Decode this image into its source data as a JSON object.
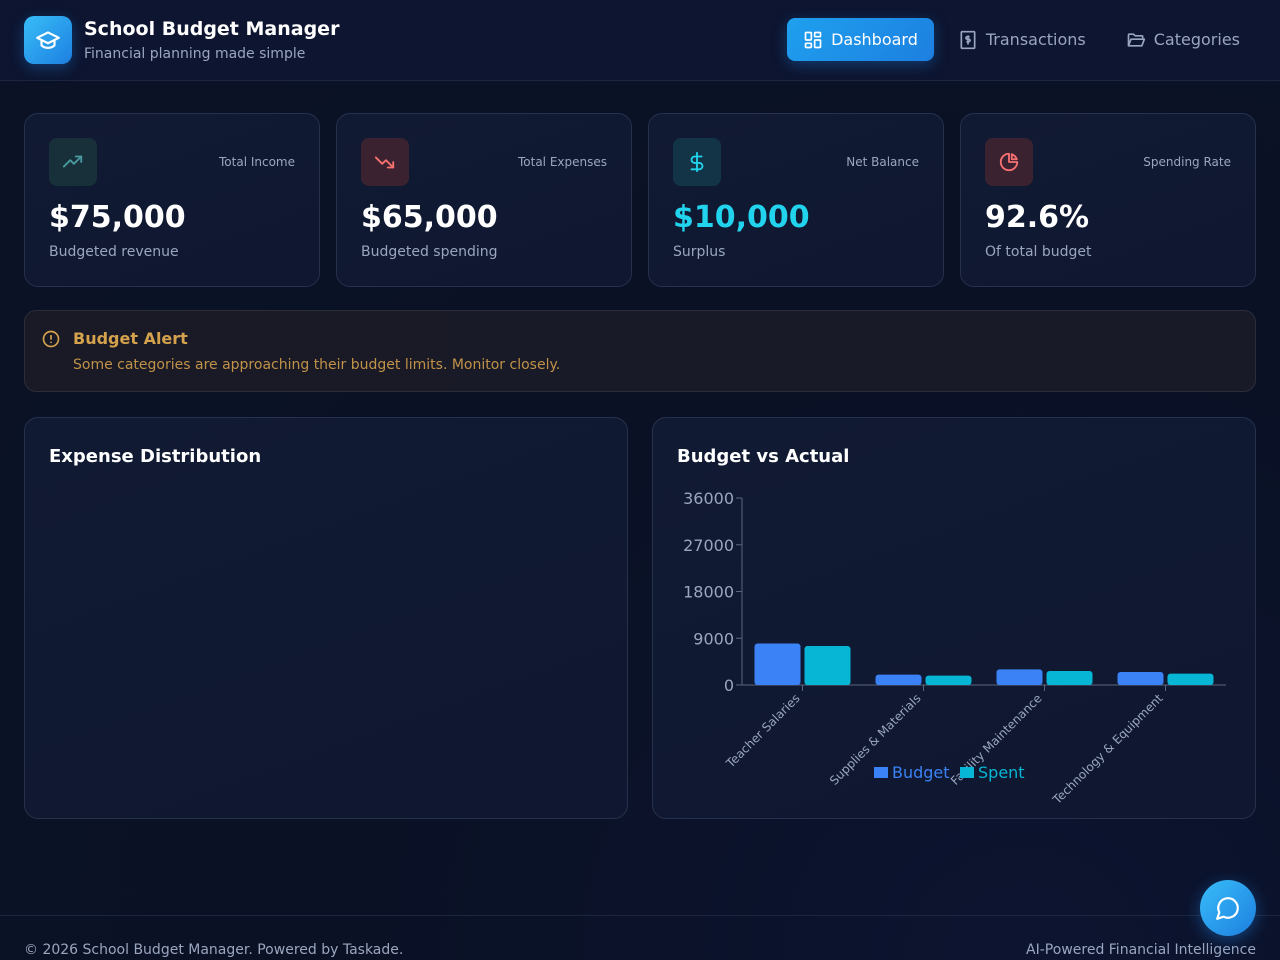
{
  "header": {
    "title": "School Budget Manager",
    "subtitle": "Financial planning made simple",
    "nav": [
      {
        "label": "Dashboard",
        "icon": "dashboard-icon",
        "active": true
      },
      {
        "label": "Transactions",
        "icon": "receipt-icon",
        "active": false
      },
      {
        "label": "Categories",
        "icon": "folder-icon",
        "active": false
      }
    ]
  },
  "stats": [
    {
      "label": "Total Income",
      "value": "$75,000",
      "sub": "Budgeted revenue",
      "icon": "trending-up-icon",
      "color": "#34d3c0"
    },
    {
      "label": "Total Expenses",
      "value": "$65,000",
      "sub": "Budgeted spending",
      "icon": "trending-down-icon",
      "color": "#f87171"
    },
    {
      "label": "Net Balance",
      "value": "$10,000",
      "sub": "Surplus",
      "icon": "dollar-icon",
      "color": "#22d3ee"
    },
    {
      "label": "Spending Rate",
      "value": "92.6%",
      "sub": "Of total budget",
      "icon": "pie-chart-icon",
      "color": "#f87171"
    }
  ],
  "alert": {
    "title": "Budget Alert",
    "message": "Some categories are approaching their budget limits. Monitor closely."
  },
  "panels": {
    "expense_title": "Expense Distribution",
    "budget_title": "Budget vs Actual"
  },
  "chart_data": {
    "type": "bar",
    "title": "Budget vs Actual",
    "categories": [
      "Teacher Salaries",
      "Supplies & Materials",
      "Facility Maintenance",
      "Technology & Equipment"
    ],
    "series": [
      {
        "name": "Budget",
        "values": [
          8000,
          2000,
          3000,
          2500
        ],
        "color": "#3b82f6"
      },
      {
        "name": "Spent",
        "values": [
          7500,
          1800,
          2700,
          2200
        ],
        "color": "#06b6d4"
      }
    ],
    "y_ticks": [
      "0",
      "9000",
      "18000",
      "27000",
      "36000"
    ],
    "ylim": [
      0,
      36000
    ],
    "legend": "bottom"
  },
  "footer": {
    "left": "© 2026 School Budget Manager. Powered by Taskade.",
    "right": "AI-Powered Financial Intelligence"
  },
  "colors": {
    "accent": "#1d7fe0",
    "background": "#0b1226",
    "warning": "#d4a24c"
  }
}
